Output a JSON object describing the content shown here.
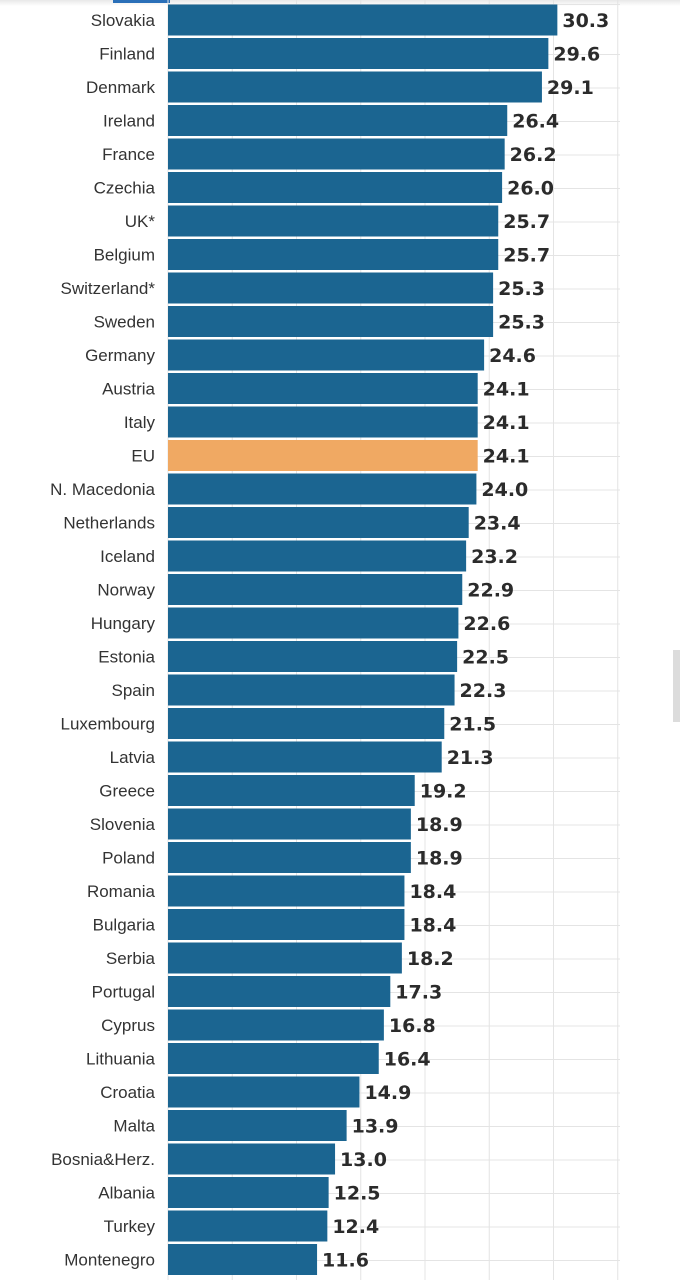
{
  "chart_data": {
    "type": "bar",
    "orientation": "horizontal",
    "title": "",
    "xlabel": "",
    "ylabel": "",
    "xlim": [
      0,
      35
    ],
    "grid": true,
    "categories": [
      "Slovakia",
      "Finland",
      "Denmark",
      "Ireland",
      "France",
      "Czechia",
      "UK*",
      "Belgium",
      "Switzerland*",
      "Sweden",
      "Germany",
      "Austria",
      "Italy",
      "EU",
      "N. Macedonia",
      "Netherlands",
      "Iceland",
      "Norway",
      "Hungary",
      "Estonia",
      "Spain",
      "Luxembourg",
      "Latvia",
      "Greece",
      "Slovenia",
      "Poland",
      "Romania",
      "Bulgaria",
      "Serbia",
      "Portugal",
      "Cyprus",
      "Lithuania",
      "Croatia",
      "Malta",
      "Bosnia&Herz.",
      "Albania",
      "Turkey",
      "Montenegro"
    ],
    "values": [
      30.3,
      29.6,
      29.1,
      26.4,
      26.2,
      26.0,
      25.7,
      25.7,
      25.3,
      25.3,
      24.6,
      24.1,
      24.1,
      24.1,
      24.0,
      23.4,
      23.2,
      22.9,
      22.6,
      22.5,
      22.3,
      21.5,
      21.3,
      19.2,
      18.9,
      18.9,
      18.4,
      18.4,
      18.2,
      17.3,
      16.8,
      16.4,
      14.9,
      13.9,
      13.0,
      12.5,
      12.4,
      11.6
    ],
    "value_labels": [
      "30.3",
      "29.6",
      "29.1",
      "26.4",
      "26.2",
      "26.0",
      "25.7",
      "25.7",
      "25.3",
      "25.3",
      "24.6",
      "24.1",
      "24.1",
      "24.1",
      "24.0",
      "23.4",
      "23.2",
      "22.9",
      "22.6",
      "22.5",
      "22.3",
      "21.5",
      "21.3",
      "19.2",
      "18.9",
      "18.9",
      "18.4",
      "18.4",
      "18.2",
      "17.3",
      "16.8",
      "16.4",
      "14.9",
      "13.9",
      "13.0",
      "12.5",
      "12.4",
      "11.6"
    ],
    "highlight_category": "EU",
    "colors": {
      "bar": "#1b6591",
      "highlight": "#f0a963",
      "grid": "#e4e4e4",
      "label": "#333333"
    }
  }
}
